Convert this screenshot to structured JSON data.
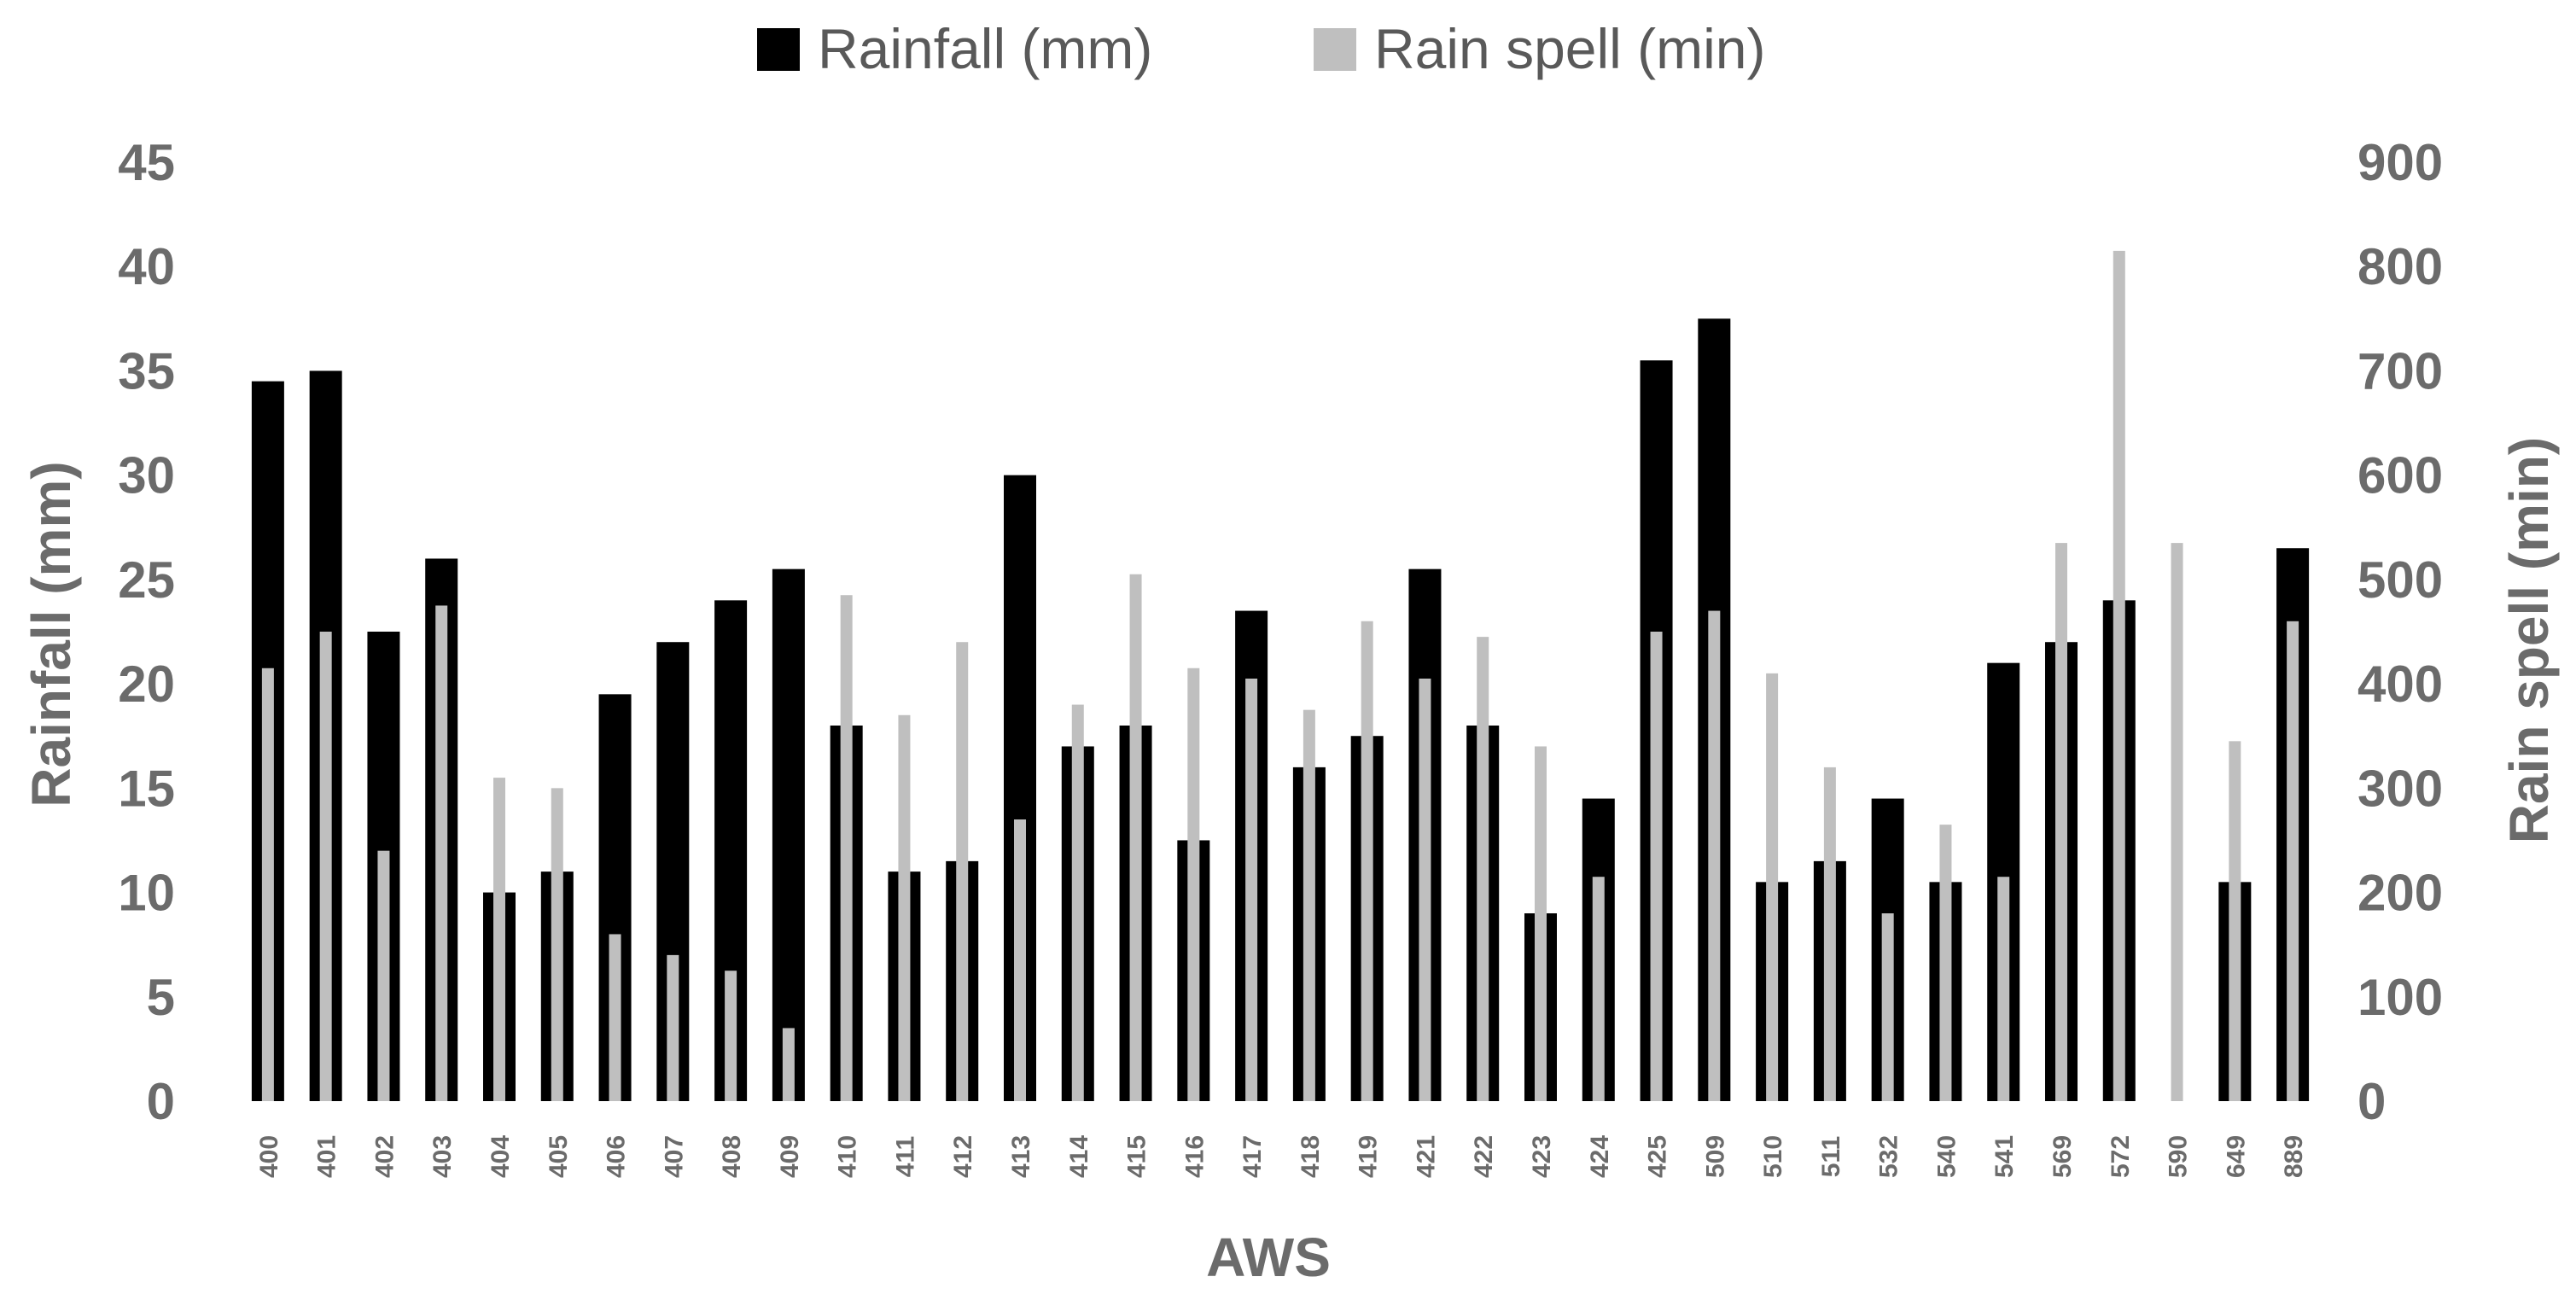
{
  "chart_data": {
    "type": "bar",
    "xlabel": "AWS",
    "ylabel": "Rainfall (mm)",
    "y2label": "Rain spell (min)",
    "ylim": [
      0,
      45
    ],
    "y2lim": [
      0,
      900
    ],
    "yticks": [
      0,
      5,
      10,
      15,
      20,
      25,
      30,
      35,
      40,
      45
    ],
    "y2ticks": [
      0,
      100,
      200,
      300,
      400,
      500,
      600,
      700,
      800,
      900
    ],
    "legend_position": "top-center",
    "grid": false,
    "categories": [
      "400",
      "401",
      "402",
      "403",
      "404",
      "405",
      "406",
      "407",
      "408",
      "409",
      "410",
      "411",
      "412",
      "413",
      "414",
      "415",
      "416",
      "417",
      "418",
      "419",
      "421",
      "422",
      "423",
      "424",
      "425",
      "509",
      "510",
      "511",
      "532",
      "540",
      "541",
      "569",
      "572",
      "590",
      "649",
      "889"
    ],
    "series": [
      {
        "name": "Rainfall (mm)",
        "axis": "left",
        "color": "#000000",
        "values": [
          34.5,
          35,
          22.5,
          26,
          10,
          11,
          19.5,
          22,
          24,
          25.5,
          18,
          11,
          11.5,
          30,
          17,
          18,
          12.5,
          23.5,
          16,
          17.5,
          25.5,
          18,
          9,
          14.5,
          35.5,
          37.5,
          10.5,
          11.5,
          14.5,
          10.5,
          21,
          22,
          24,
          0,
          10.5,
          26.5
        ]
      },
      {
        "name": "Rain spell (min)",
        "axis": "right",
        "color": "#bfbfbf",
        "values": [
          415,
          450,
          240,
          475,
          310,
          300,
          160,
          140,
          125,
          70,
          485,
          370,
          440,
          270,
          380,
          505,
          415,
          405,
          375,
          460,
          405,
          445,
          340,
          215,
          450,
          470,
          410,
          320,
          180,
          265,
          215,
          535,
          815,
          535,
          345,
          460
        ]
      }
    ]
  }
}
